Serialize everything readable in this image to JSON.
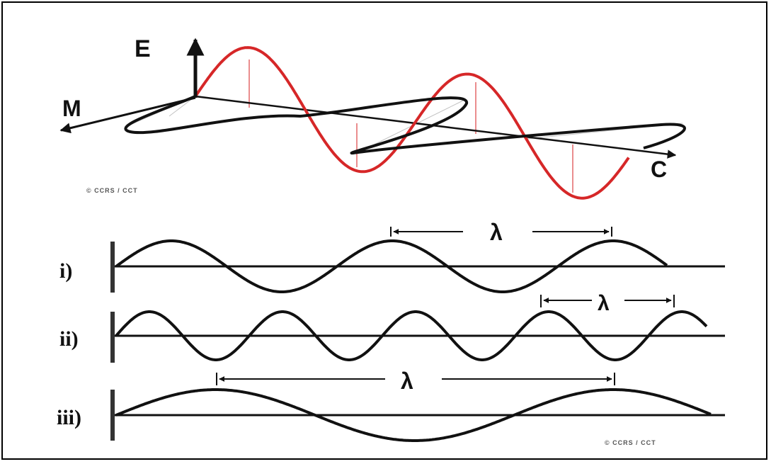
{
  "top_figure": {
    "labels": {
      "electric": "E",
      "magnetic": "M",
      "propagation": "C"
    },
    "credit": "© CCRS / CCT",
    "colors": {
      "electric_wave": "#d62728",
      "magnetic_wave": "#111111",
      "axes": "#111111"
    },
    "icons": [
      "arrow-up-icon",
      "arrow-left-icon",
      "arrow-right-icon"
    ]
  },
  "wavelength_panels": [
    {
      "label": "i)",
      "wavelength_symbol": "λ"
    },
    {
      "label": "ii)",
      "wavelength_symbol": "λ"
    },
    {
      "label": "iii)",
      "wavelength_symbol": "λ"
    }
  ],
  "bottom_credit": "© CCRS / CCT"
}
